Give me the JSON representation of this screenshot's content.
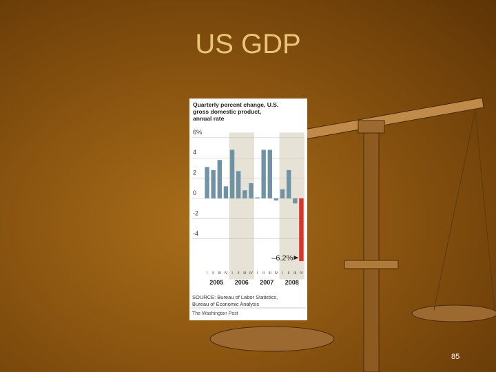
{
  "slide": {
    "title": "US GDP",
    "page_number": "85"
  },
  "chart_data": {
    "type": "bar",
    "title": "Quarterly percent change, U.S. gross domestic product, annual rate",
    "categories": [
      "I",
      "II",
      "III",
      "IV",
      "I",
      "II",
      "III",
      "IV",
      "I",
      "II",
      "III",
      "IV",
      "I",
      "II",
      "III",
      "IV"
    ],
    "years": [
      "2005",
      "2006",
      "2007",
      "2008"
    ],
    "values": [
      3.1,
      2.8,
      3.8,
      1.2,
      4.8,
      2.7,
      0.8,
      1.5,
      0.1,
      4.8,
      4.8,
      -0.2,
      0.9,
      2.8,
      -0.5,
      -6.2
    ],
    "value_labels": [
      null,
      null,
      null,
      null,
      null,
      null,
      null,
      null,
      null,
      null,
      null,
      null,
      null,
      null,
      null,
      "–6.2%"
    ],
    "colors": [
      "#6f93a5",
      "#6f93a5",
      "#6f93a5",
      "#6f93a5",
      "#6f93a5",
      "#6f93a5",
      "#6f93a5",
      "#6f93a5",
      "#6f93a5",
      "#6f93a5",
      "#6f93a5",
      "#6f93a5",
      "#6f93a5",
      "#6f93a5",
      "#6f93a5",
      "#d9342b"
    ],
    "ylim": [
      -6.5,
      6.5
    ],
    "yticks": [
      {
        "value": 6,
        "label": "6%"
      },
      4,
      2,
      0,
      -2,
      -4
    ],
    "grid": true,
    "source": "SOURCE: Bureau of Labor Statistics, Bureau of Economic Analysis",
    "credit": "The Washington Post"
  }
}
